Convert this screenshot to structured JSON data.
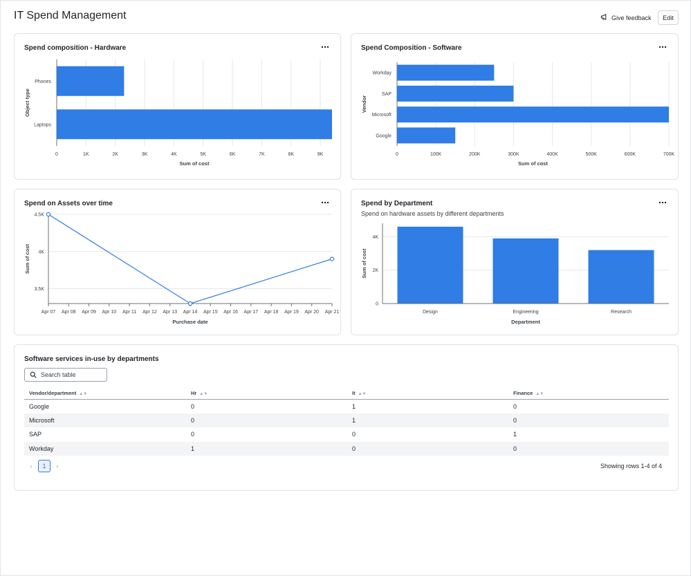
{
  "header": {
    "title": "IT Spend Management",
    "feedback_label": "Give feedback",
    "edit_label": "Edit"
  },
  "colors": {
    "bar": "#2f7de5",
    "line": "#2f7ae5",
    "grid": "#e5e7eb",
    "axis": "#6b7075"
  },
  "hardware": {
    "title": "Spend composition - Hardware",
    "chart_data": {
      "type": "bar",
      "orientation": "horizontal",
      "categories": [
        "Phones",
        "Laptops"
      ],
      "values": [
        2300,
        9400
      ],
      "xlabel": "Sum of cost",
      "ylabel": "Object type",
      "xlim": [
        0,
        9400
      ],
      "xticks": [
        0,
        1000,
        2000,
        3000,
        4000,
        5000,
        6000,
        7000,
        8000,
        9000
      ],
      "xtick_labels": [
        "0",
        "1K",
        "2K",
        "3K",
        "4K",
        "5K",
        "6K",
        "7K",
        "8K",
        "9K"
      ],
      "grid": true
    }
  },
  "software": {
    "title": "Spend Composition - Software",
    "chart_data": {
      "type": "bar",
      "orientation": "horizontal",
      "categories": [
        "Workday",
        "SAP",
        "Microsoft",
        "Google"
      ],
      "values": [
        250000,
        300000,
        700000,
        150000
      ],
      "xlabel": "Sum of cost",
      "ylabel": "Vendor",
      "xlim": [
        0,
        700000
      ],
      "xticks": [
        0,
        100000,
        200000,
        300000,
        400000,
        500000,
        600000,
        700000
      ],
      "xtick_labels": [
        "0",
        "100K",
        "200K",
        "300K",
        "400K",
        "500K",
        "600K",
        "700K"
      ],
      "grid": true
    }
  },
  "assets_time": {
    "title": "Spend on Assets over time",
    "chart_data": {
      "type": "line",
      "x": [
        "Apr 07",
        "Apr 14",
        "Apr 21"
      ],
      "values": [
        4500,
        3300,
        3900
      ],
      "xlabel": "Purchase date",
      "ylabel": "Sum of cost",
      "ylim": [
        3300,
        4500
      ],
      "yticks": [
        3500,
        4000,
        4500
      ],
      "ytick_labels": [
        "3.5K",
        "4K",
        "4.5K"
      ],
      "xtick_labels": [
        "Apr 07",
        "Apr 08",
        "Apr 09",
        "Apr 10",
        "Apr 11",
        "Apr 12",
        "Apr 13",
        "Apr 14",
        "Apr 15",
        "Apr 16",
        "Apr 17",
        "Apr 18",
        "Apr 19",
        "Apr 20",
        "Apr 21"
      ],
      "grid": true
    }
  },
  "department": {
    "title": "Spend by Department",
    "subtitle": "Spend on hardware assets by different departments",
    "chart_data": {
      "type": "bar",
      "orientation": "vertical",
      "categories": [
        "Design",
        "Engineering",
        "Research"
      ],
      "values": [
        4600,
        3900,
        3200
      ],
      "xlabel": "Department",
      "ylabel": "Sum of cost",
      "ylim": [
        0,
        4800
      ],
      "yticks": [
        0,
        2000,
        4000
      ],
      "ytick_labels": [
        "0",
        "2K",
        "4K"
      ],
      "grid": true
    }
  },
  "table": {
    "title": "Software services in-use by departments",
    "search_placeholder": "Search table",
    "columns": [
      "Vendor/department",
      "Hr",
      "It",
      "Finance"
    ],
    "rows": [
      [
        "Google",
        "0",
        "1",
        "0"
      ],
      [
        "Microsoft",
        "0",
        "1",
        "0"
      ],
      [
        "SAP",
        "0",
        "0",
        "1"
      ],
      [
        "Workday",
        "1",
        "0",
        "0"
      ]
    ],
    "current_page": "1",
    "rows_info": "Showing rows 1-4 of 4"
  }
}
